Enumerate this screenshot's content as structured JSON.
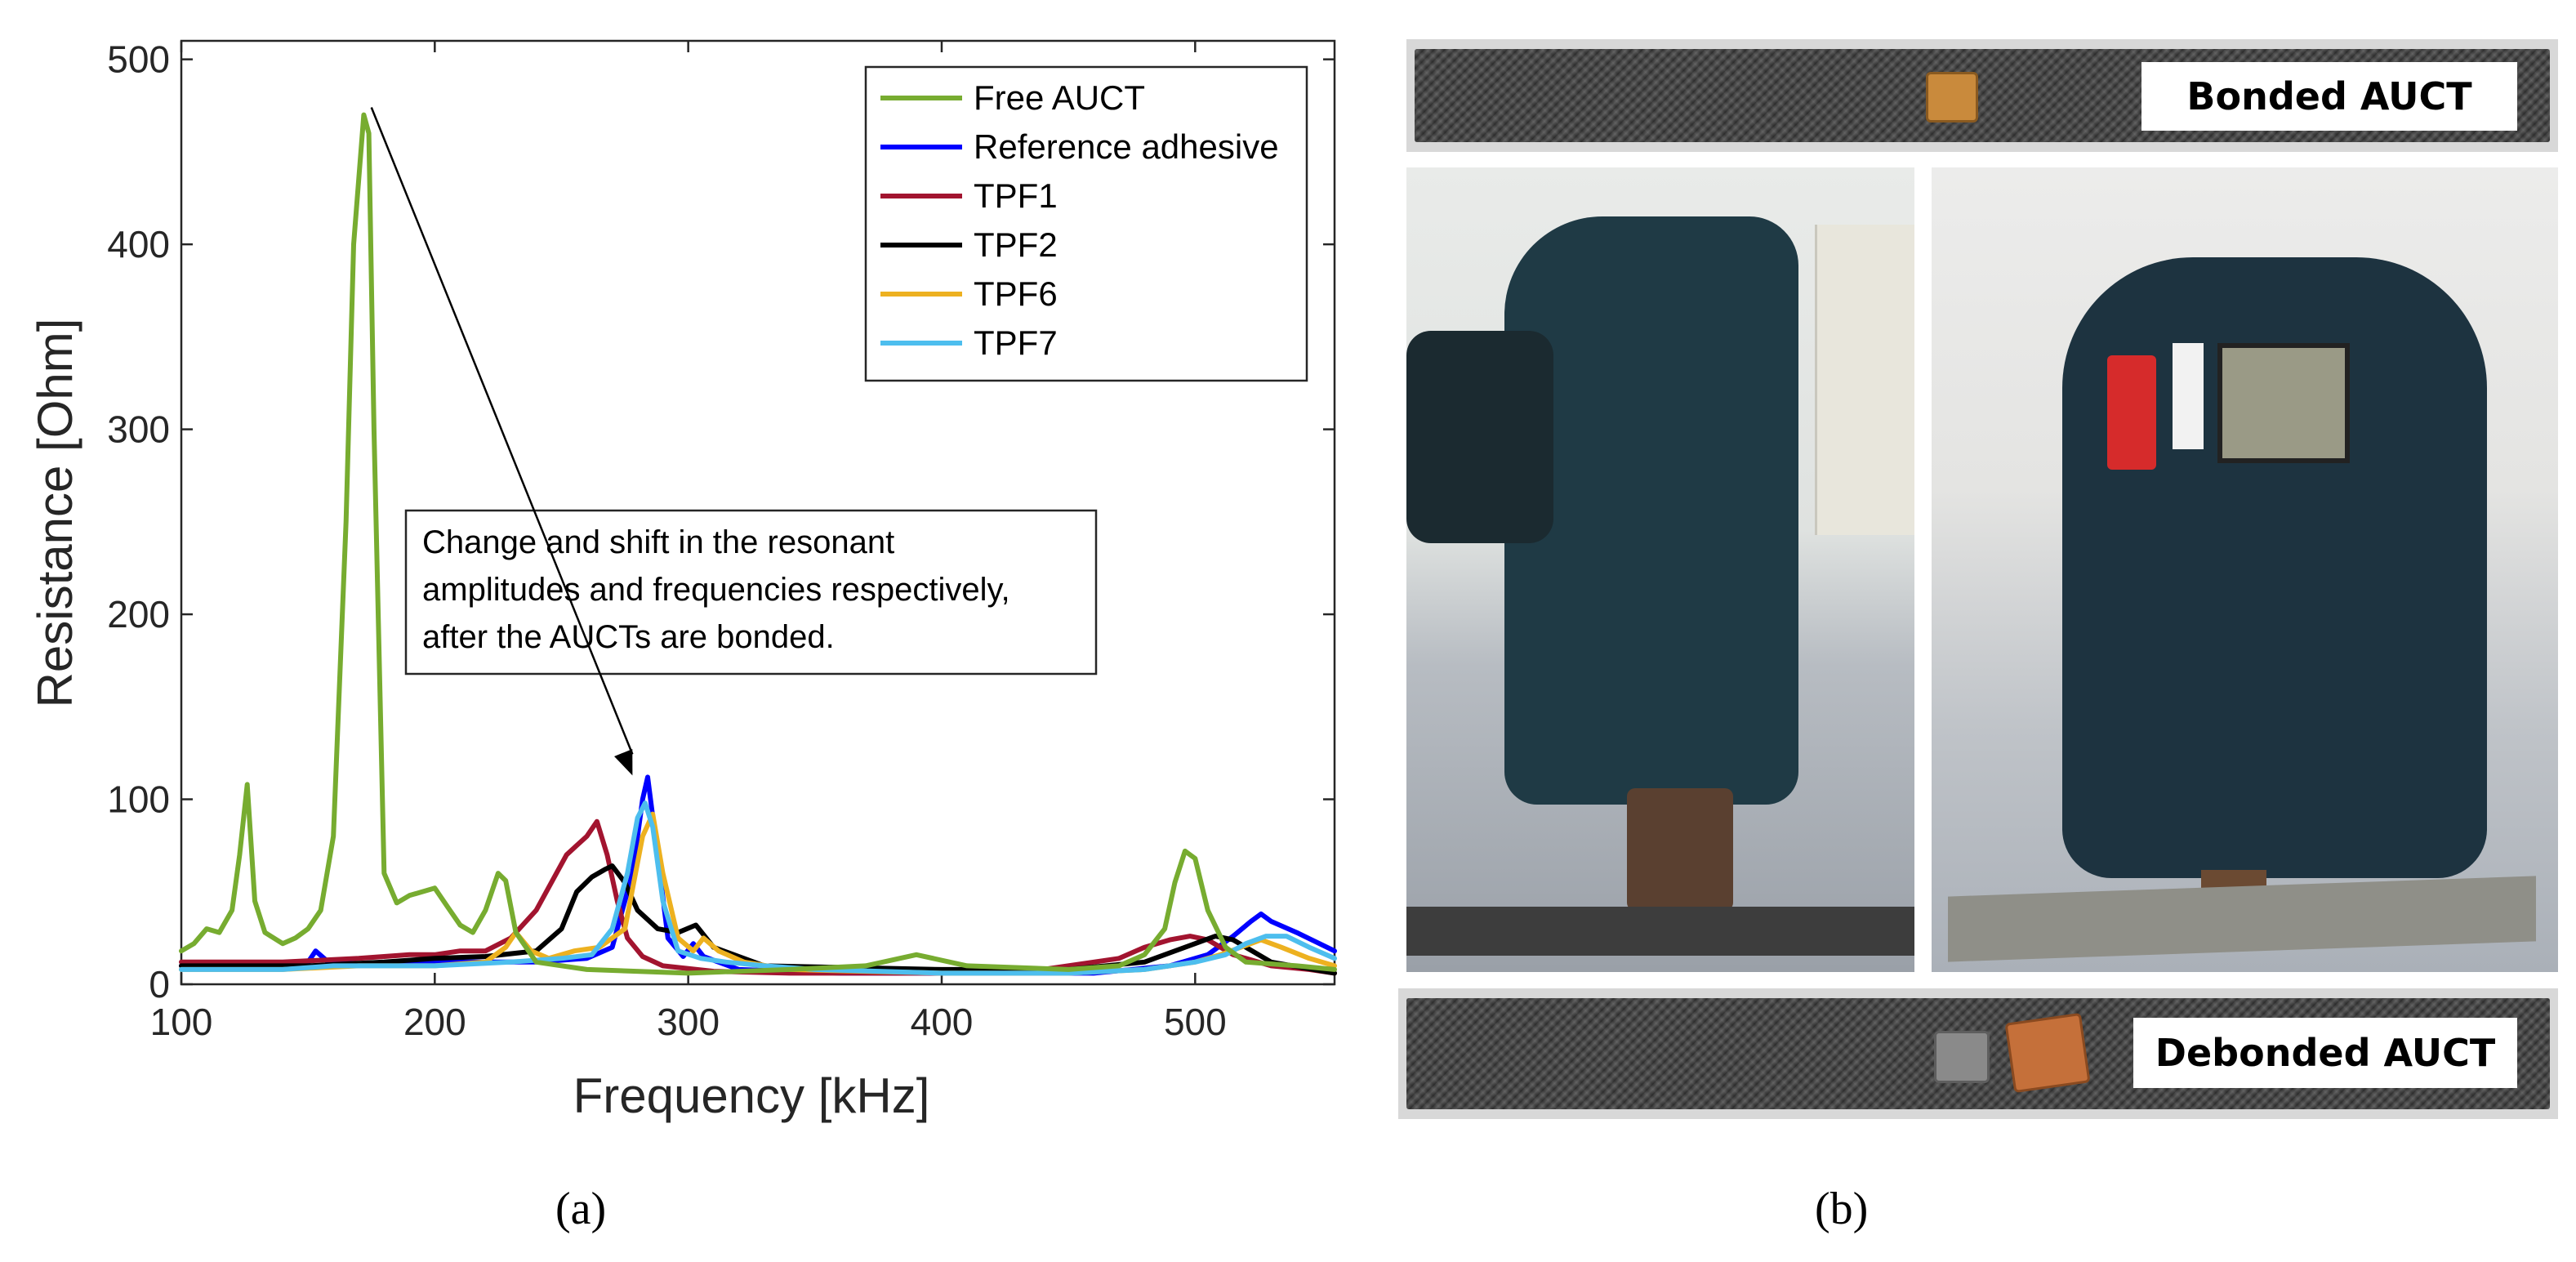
{
  "chart_data": {
    "type": "line",
    "xlabel": "Frequency [kHz]",
    "ylabel": "Resistance [Ohm]",
    "xlim": [
      100,
      555
    ],
    "ylim": [
      0,
      510
    ],
    "xticks": [
      100,
      200,
      300,
      400,
      500
    ],
    "yticks": [
      0,
      100,
      200,
      300,
      400,
      500
    ],
    "grid": false,
    "legend_position": "top-right",
    "series": [
      {
        "name": "Free AUCT",
        "color": "#77ac30",
        "x": [
          100,
          105,
          110,
          115,
          120,
          123,
          126,
          129,
          133,
          140,
          145,
          150,
          155,
          160,
          165,
          168,
          172,
          174,
          176,
          180,
          185,
          190,
          200,
          205,
          210,
          215,
          220,
          225,
          228,
          232,
          240,
          260,
          300,
          340,
          370,
          390,
          410,
          450,
          470,
          480,
          488,
          492,
          496,
          500,
          505,
          512,
          520,
          540,
          555
        ],
        "y": [
          18,
          22,
          30,
          28,
          40,
          70,
          108,
          45,
          28,
          22,
          25,
          30,
          40,
          80,
          250,
          400,
          470,
          460,
          300,
          60,
          44,
          48,
          52,
          42,
          32,
          28,
          40,
          60,
          56,
          28,
          12,
          8,
          6,
          8,
          10,
          16,
          10,
          8,
          10,
          16,
          30,
          55,
          72,
          68,
          40,
          20,
          12,
          10,
          8
        ]
      },
      {
        "name": "Reference adhesive",
        "color": "#0000ff",
        "x": [
          100,
          130,
          150,
          153,
          158,
          170,
          200,
          240,
          260,
          270,
          278,
          282,
          284,
          287,
          292,
          298,
          302,
          306,
          320,
          360,
          420,
          460,
          490,
          505,
          515,
          522,
          526,
          530,
          540,
          555
        ],
        "y": [
          10,
          10,
          12,
          18,
          12,
          11,
          12,
          12,
          14,
          20,
          60,
          100,
          112,
          80,
          25,
          15,
          22,
          15,
          8,
          6,
          6,
          6,
          10,
          16,
          26,
          34,
          38,
          34,
          28,
          18
        ]
      },
      {
        "name": "TPF1",
        "color": "#a2142f",
        "x": [
          100,
          140,
          170,
          190,
          200,
          210,
          220,
          230,
          240,
          248,
          252,
          256,
          260,
          264,
          268,
          272,
          276,
          282,
          290,
          310,
          340,
          400,
          440,
          470,
          480,
          490,
          498,
          505,
          515,
          530,
          545,
          555
        ],
        "y": [
          12,
          12,
          14,
          16,
          16,
          18,
          18,
          25,
          40,
          60,
          70,
          75,
          80,
          88,
          70,
          45,
          25,
          15,
          10,
          7,
          6,
          6,
          8,
          14,
          20,
          24,
          26,
          24,
          16,
          10,
          8,
          6
        ]
      },
      {
        "name": "TPF2",
        "color": "#000000",
        "x": [
          100,
          150,
          180,
          200,
          220,
          240,
          250,
          256,
          262,
          267,
          270,
          275,
          280,
          288,
          296,
          303,
          310,
          330,
          400,
          450,
          480,
          500,
          508,
          515,
          530,
          555
        ],
        "y": [
          10,
          10,
          12,
          14,
          15,
          18,
          30,
          50,
          58,
          62,
          64,
          55,
          40,
          30,
          28,
          32,
          20,
          10,
          8,
          8,
          12,
          22,
          26,
          24,
          12,
          6
        ]
      },
      {
        "name": "TPF6",
        "color": "#edb120",
        "x": [
          100,
          140,
          170,
          200,
          220,
          228,
          232,
          238,
          245,
          255,
          265,
          275,
          282,
          286,
          290,
          296,
          302,
          306,
          312,
          322,
          340,
          400,
          450,
          480,
          500,
          510,
          518,
          526,
          534,
          545,
          555
        ],
        "y": [
          8,
          8,
          10,
          10,
          12,
          20,
          28,
          18,
          14,
          18,
          20,
          30,
          80,
          92,
          60,
          25,
          18,
          25,
          18,
          12,
          8,
          6,
          6,
          8,
          12,
          16,
          20,
          24,
          20,
          14,
          10
        ]
      },
      {
        "name": "TPF7",
        "color": "#4dbeee",
        "x": [
          100,
          140,
          160,
          200,
          230,
          250,
          262,
          270,
          276,
          280,
          283,
          286,
          290,
          296,
          305,
          315,
          330,
          350,
          400,
          450,
          480,
          500,
          512,
          520,
          528,
          536,
          545,
          555
        ],
        "y": [
          8,
          8,
          10,
          10,
          12,
          14,
          16,
          30,
          60,
          90,
          98,
          85,
          45,
          18,
          14,
          12,
          10,
          8,
          6,
          6,
          8,
          12,
          16,
          22,
          26,
          26,
          20,
          14
        ]
      }
    ],
    "annotation": {
      "lines": [
        "Change and shift in the resonant",
        "amplitudes and frequencies respectively,",
        "after the AUCTs are bonded."
      ],
      "arrow_from": [
        175,
        474
      ],
      "arrow_to": [
        278,
        112
      ]
    }
  },
  "captions": {
    "left": "(a)",
    "right": "(b)"
  },
  "photos": {
    "bonded_label": "Bonded AUCT",
    "debonded_label": "Debonded AUCT"
  }
}
